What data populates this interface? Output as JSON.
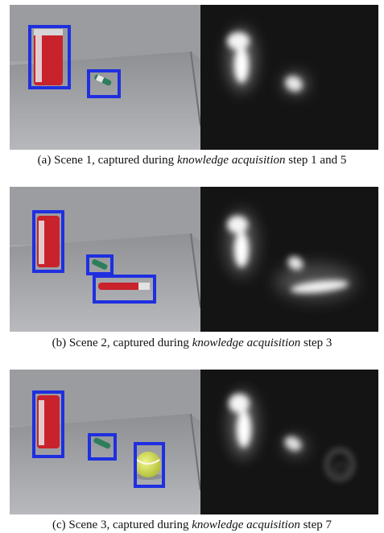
{
  "figure": {
    "panels": [
      {
        "id": "a",
        "caption": {
          "prefix": "(a) Scene 1, captured during ",
          "emph": "knowledge acquisition",
          "suffix": " step 1 and 5"
        },
        "objects": [
          "soda-can",
          "green-marker"
        ],
        "box_color": "#1f2fe0"
      },
      {
        "id": "b",
        "caption": {
          "prefix": "(b) Scene 2, captured during ",
          "emph": "knowledge acquisition",
          "suffix": " step 3"
        },
        "objects": [
          "soda-can",
          "green-marker",
          "red-marker"
        ],
        "box_color": "#1f2fe0"
      },
      {
        "id": "c",
        "caption": {
          "prefix": "(c) Scene 3, captured during ",
          "emph": "knowledge acquisition",
          "suffix": " step 7"
        },
        "objects": [
          "soda-can",
          "green-marker",
          "tennis-ball"
        ],
        "box_color": "#1f2fe0"
      }
    ]
  }
}
